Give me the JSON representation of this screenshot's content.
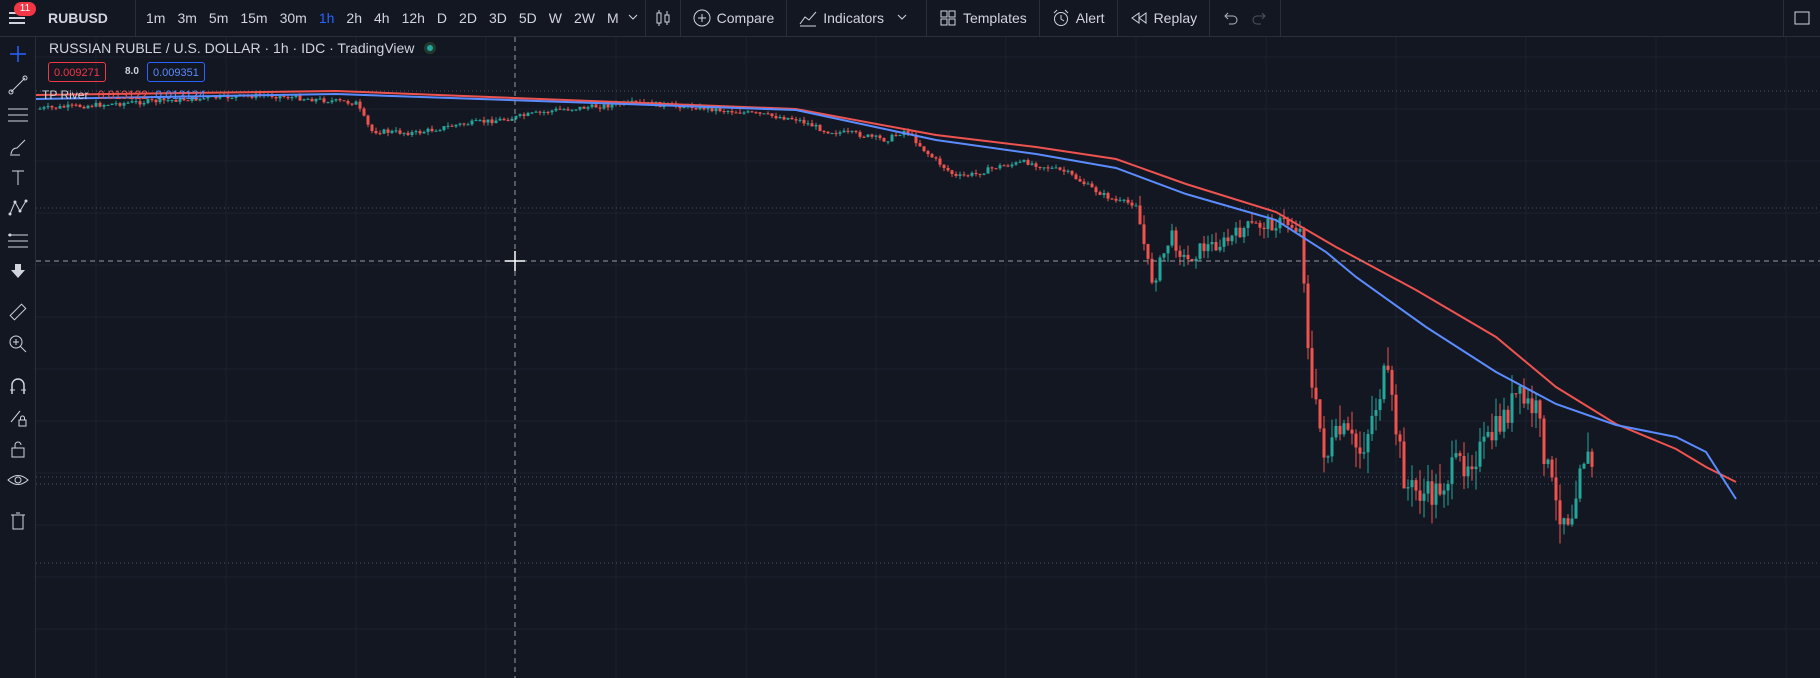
{
  "toolbar": {
    "notification_count": "11",
    "symbol": "RUBUSD",
    "intervals": [
      {
        "label": "1m",
        "active": false
      },
      {
        "label": "3m",
        "active": false
      },
      {
        "label": "5m",
        "active": false
      },
      {
        "label": "15m",
        "active": false
      },
      {
        "label": "30m",
        "active": false
      },
      {
        "label": "1h",
        "active": true
      },
      {
        "label": "2h",
        "active": false
      },
      {
        "label": "4h",
        "active": false
      },
      {
        "label": "12h",
        "active": false
      },
      {
        "label": "D",
        "active": false
      },
      {
        "label": "2D",
        "active": false
      },
      {
        "label": "3D",
        "active": false
      },
      {
        "label": "5D",
        "active": false
      },
      {
        "label": "W",
        "active": false
      },
      {
        "label": "2W",
        "active": false
      },
      {
        "label": "M",
        "active": false
      }
    ],
    "compare_label": "Compare",
    "indicators_label": "Indicators",
    "templates_label": "Templates",
    "alert_label": "Alert",
    "replay_label": "Replay"
  },
  "legend": {
    "title": "RUSSIAN RUBLE / U.S. DOLLAR · 1h · IDC · TradingView",
    "sell_price": "0.009271",
    "spread": "8.0",
    "buy_price": "0.009351"
  },
  "indicator": {
    "name": "TP River",
    "value_1": "0.013122",
    "value_2": "0.012124"
  },
  "sidebar_tools": [
    "crosshair-icon",
    "trend-line-icon",
    "fib-retracement-icon",
    "brush-icon",
    "text-icon",
    "pattern-icon",
    "projection-icon",
    "arrow-down-icon",
    "ruler-icon",
    "zoom-in-icon",
    "magnet-icon",
    "lock-drawing-icon",
    "unlock-icon",
    "eye-icon",
    "trash-icon"
  ],
  "colors": {
    "background": "#131722",
    "up": "#26a69a",
    "down": "#ef5350",
    "river_upper": "#ef5350",
    "river_lower": "#5b8cff",
    "accent": "#2962ff"
  }
}
